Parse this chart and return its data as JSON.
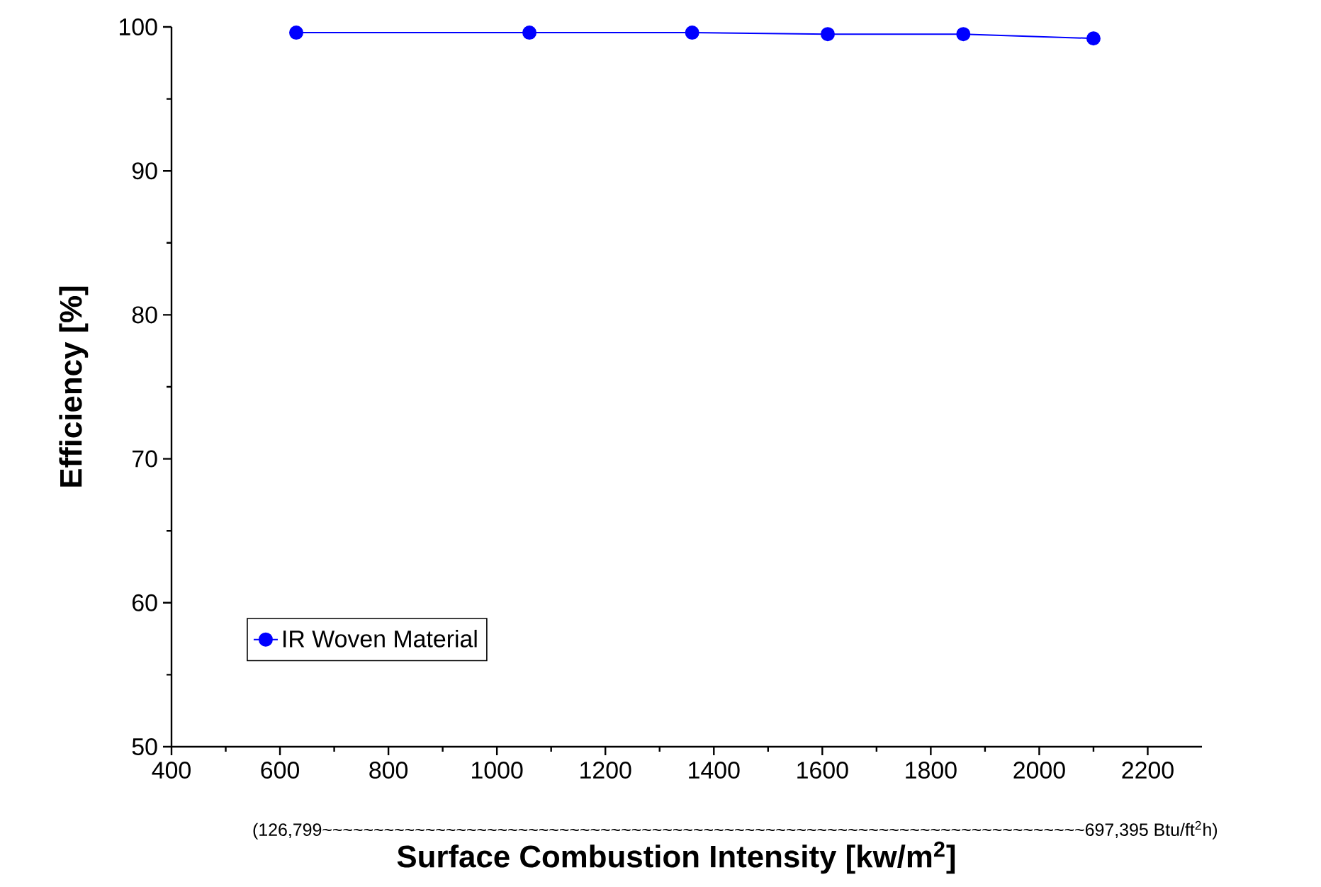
{
  "chart_data": {
    "type": "line",
    "xlabel": "Surface Combustion Intensity [kw/m$^{2}$]",
    "ylabel": "Efficiency [%]",
    "annotations": [
      "(126,799~~~~~~~~~~~~~~~~~~~~~~~~~~~~~~~~~~~~~~~~~~~~~~~~~~~~~~~~~~~~~~~~~~~~~~~~~~697,395 Btu/ft$^{2}$h)"
    ],
    "x": [
      630,
      1060,
      1360,
      1610,
      1860,
      2100
    ],
    "series": [
      {
        "name": "IR Woven Material",
        "color": "#0000ff",
        "values": [
          99.6,
          99.6,
          99.6,
          99.5,
          99.5,
          99.2
        ]
      }
    ],
    "xlim": [
      400,
      2300
    ],
    "xticks": [
      400,
      600,
      800,
      1000,
      1200,
      1400,
      1600,
      1800,
      2000,
      2200
    ],
    "ylim": [
      50,
      100
    ],
    "yticks": [
      50,
      60,
      70,
      80,
      90,
      100
    ],
    "grid": false,
    "legend": "bottom left",
    "marker": "circle",
    "line_style": "solid"
  }
}
